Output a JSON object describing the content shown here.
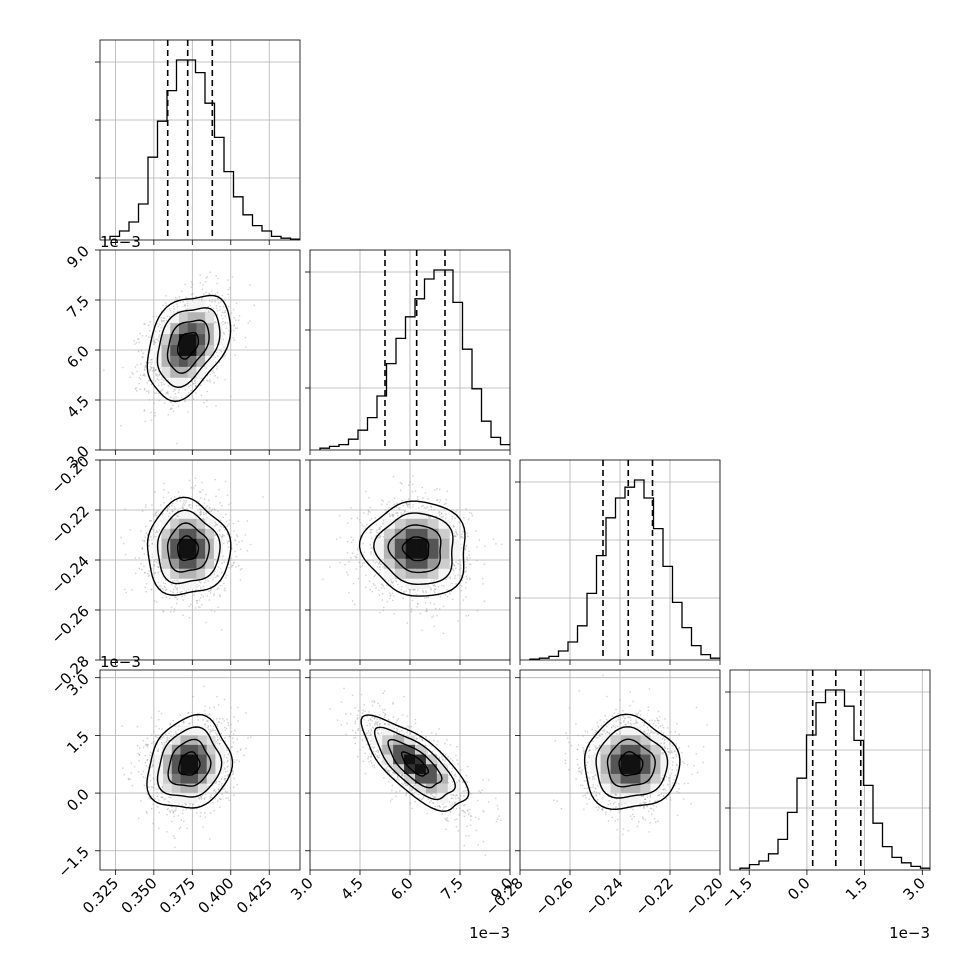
{
  "chart_data": {
    "type": "corner",
    "grid": true,
    "params": [
      {
        "lim": [
          0.315,
          0.445
        ],
        "ticks": [
          "0.325",
          "0.350",
          "0.375",
          "0.400",
          "0.425"
        ],
        "tickvals": [
          0.325,
          0.35,
          0.375,
          0.4,
          0.425
        ],
        "multiplier": ""
      },
      {
        "lim": [
          3.0,
          9.0
        ],
        "ticks": [
          "3.0",
          "4.5",
          "6.0",
          "7.5",
          "9.0"
        ],
        "tickvals": [
          3.0,
          4.5,
          6.0,
          7.5,
          9.0
        ],
        "multiplier": "1e−3"
      },
      {
        "lim": [
          -0.28,
          -0.2
        ],
        "ticks": [
          "−0.28",
          "−0.26",
          "−0.24",
          "−0.22",
          "−0.20"
        ],
        "tickvals": [
          -0.28,
          -0.26,
          -0.24,
          -0.22,
          -0.2
        ],
        "multiplier": ""
      },
      {
        "lim": [
          -2.0,
          3.2
        ],
        "ticks": [
          "−1.5",
          "0.0",
          "1.5",
          "3.0"
        ],
        "tickvals": [
          -1.5,
          0.0,
          1.5,
          3.0
        ],
        "multiplier": "1e−3"
      }
    ],
    "histograms": [
      {
        "quantiles": [
          0.359,
          0.372,
          0.388
        ],
        "counts": [
          0.02,
          0.05,
          0.1,
          0.2,
          0.46,
          0.66,
          0.83,
          1.0,
          1.0,
          0.93,
          0.76,
          0.57,
          0.38,
          0.24,
          0.14,
          0.08,
          0.05,
          0.02,
          0.01,
          0.005
        ]
      },
      {
        "quantiles": [
          5.25,
          6.2,
          7.05
        ],
        "counts": [
          0.01,
          0.02,
          0.03,
          0.06,
          0.11,
          0.18,
          0.3,
          0.48,
          0.62,
          0.74,
          0.84,
          0.95,
          1.0,
          1.0,
          0.82,
          0.56,
          0.34,
          0.16,
          0.07,
          0.03
        ]
      },
      {
        "quantiles": [
          -0.2468,
          -0.2367,
          -0.227
        ],
        "counts": [
          0.005,
          0.01,
          0.02,
          0.05,
          0.1,
          0.19,
          0.37,
          0.58,
          0.79,
          0.9,
          0.96,
          1.0,
          0.9,
          0.73,
          0.52,
          0.32,
          0.18,
          0.08,
          0.03,
          0.01
        ]
      },
      {
        "quantiles": [
          0.15,
          0.75,
          1.4
        ],
        "counts": [
          0.01,
          0.03,
          0.05,
          0.09,
          0.17,
          0.32,
          0.51,
          0.75,
          0.93,
          1.0,
          1.0,
          0.91,
          0.72,
          0.47,
          0.26,
          0.13,
          0.07,
          0.04,
          0.02,
          0.01
        ]
      }
    ],
    "pairs": [
      {
        "x": 0,
        "y": 1,
        "center": [
          0.372,
          6.15
        ],
        "sd": [
          0.0135,
          0.78
        ],
        "corr": 0.35
      },
      {
        "x": 0,
        "y": 2,
        "center": [
          0.372,
          -0.2355
        ],
        "sd": [
          0.0135,
          0.0095
        ],
        "corr": 0.0
      },
      {
        "x": 1,
        "y": 2,
        "center": [
          6.2,
          -0.2355
        ],
        "sd": [
          0.78,
          0.0095
        ],
        "corr": -0.05
      },
      {
        "x": 0,
        "y": 3,
        "center": [
          0.373,
          0.75
        ],
        "sd": [
          0.0135,
          0.6
        ],
        "corr": 0.15
      },
      {
        "x": 1,
        "y": 3,
        "center": [
          6.15,
          0.75
        ],
        "sd": [
          0.78,
          0.6
        ],
        "corr": -0.72
      },
      {
        "x": 2,
        "y": 3,
        "center": [
          -0.2358,
          0.75
        ],
        "sd": [
          0.0095,
          0.6
        ],
        "corr": 0.0
      }
    ]
  }
}
